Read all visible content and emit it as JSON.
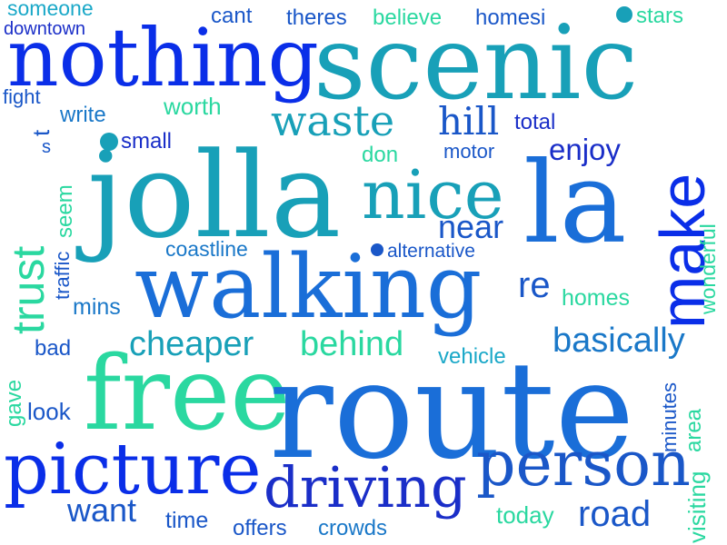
{
  "words": [
    {
      "text": "someone",
      "color": "#1aa8c8"
    },
    {
      "text": "cant",
      "color": "#1a57c8"
    },
    {
      "text": "theres",
      "color": "#1a57c8"
    },
    {
      "text": "believe",
      "color": "#2ad8a0"
    },
    {
      "text": "homesi",
      "color": "#1a57c8"
    },
    {
      "text": "stars",
      "color": "#2ad8a0"
    },
    {
      "text": "downtown",
      "color": "#1a2ec8"
    },
    {
      "text": "nothing",
      "color": "#0a2ee8"
    },
    {
      "text": "scenic",
      "color": "#18a0b8"
    },
    {
      "text": "fight",
      "color": "#1a57c8"
    },
    {
      "text": "worth",
      "color": "#2ad8a0"
    },
    {
      "text": "write",
      "color": "#1a78c8"
    },
    {
      "text": "waste",
      "color": "#18a0b8"
    },
    {
      "text": "hill",
      "color": "#1a57c8"
    },
    {
      "text": "total",
      "color": "#1a2ec8"
    },
    {
      "text": "t",
      "color": "#1a57c8"
    },
    {
      "text": "small",
      "color": "#1a2ec8"
    },
    {
      "text": "don",
      "color": "#2ad8a0"
    },
    {
      "text": "motor",
      "color": "#1a57c8"
    },
    {
      "text": "enjoy",
      "color": "#1a2ec8"
    },
    {
      "text": "s",
      "color": "#1a57c8"
    },
    {
      "text": "make",
      "color": "#0a2ee8"
    },
    {
      "text": "jolla",
      "color": "#18a0b8"
    },
    {
      "text": "nice",
      "color": "#18a0b8"
    },
    {
      "text": "la",
      "color": "#1a6ed8"
    },
    {
      "text": "near",
      "color": "#1a57c8"
    },
    {
      "text": "trust",
      "color": "#2ad8a0"
    },
    {
      "text": "seem",
      "color": "#2ad8a0"
    },
    {
      "text": "traffic",
      "color": "#1a57c8"
    },
    {
      "text": "coastline",
      "color": "#1a78c8"
    },
    {
      "text": "alternative",
      "color": "#1a57c8"
    },
    {
      "text": "wonderful",
      "color": "#2ad8a0"
    },
    {
      "text": "walking",
      "color": "#1a6ed8"
    },
    {
      "text": "re",
      "color": "#1a57c8"
    },
    {
      "text": "mins",
      "color": "#1a78c8"
    },
    {
      "text": "homes",
      "color": "#2ad8a0"
    },
    {
      "text": "cheaper",
      "color": "#18a0b8"
    },
    {
      "text": "behind",
      "color": "#2ad8a0"
    },
    {
      "text": "basically",
      "color": "#1a78c8"
    },
    {
      "text": "bad",
      "color": "#1a57c8"
    },
    {
      "text": "vehicle",
      "color": "#1aa8c8"
    },
    {
      "text": "free",
      "color": "#2ad8a0"
    },
    {
      "text": "route",
      "color": "#1a6ed8"
    },
    {
      "text": "gave",
      "color": "#2ad8a0"
    },
    {
      "text": "look",
      "color": "#1a57c8"
    },
    {
      "text": "minutes",
      "color": "#1a57c8"
    },
    {
      "text": "area",
      "color": "#2ad8a0"
    },
    {
      "text": "picture",
      "color": "#0a2ee8"
    },
    {
      "text": "person",
      "color": "#1a57c8"
    },
    {
      "text": "driving",
      "color": "#1a2ec8"
    },
    {
      "text": "visiting",
      "color": "#2ad8a0"
    },
    {
      "text": "want",
      "color": "#1a57c8"
    },
    {
      "text": "time",
      "color": "#1a57c8"
    },
    {
      "text": "today",
      "color": "#2ad8a0"
    },
    {
      "text": "road",
      "color": "#1a57c8"
    },
    {
      "text": "offers",
      "color": "#1a57c8"
    },
    {
      "text": "crowds",
      "color": "#1a78c8"
    }
  ],
  "dot_colors": [
    "#18a0b8",
    "#18a0b8",
    "#1a57c8"
  ]
}
